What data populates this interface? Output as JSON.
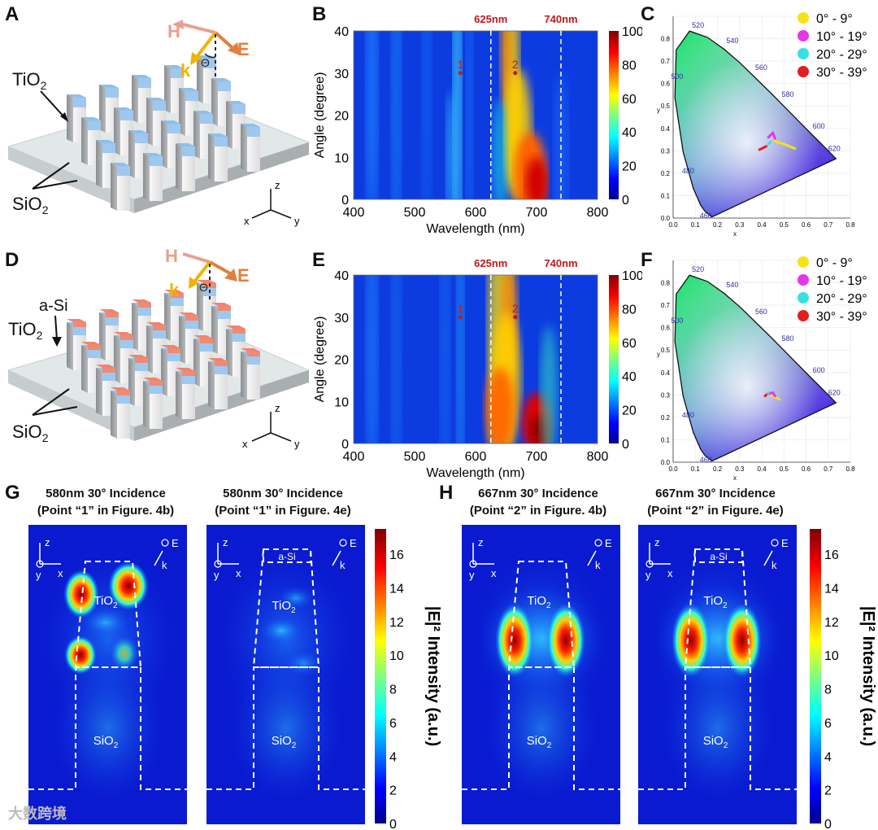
{
  "panels": {
    "A": {
      "letter": "A",
      "top_material": "TiO",
      "top_sub": "2",
      "sub_material": "SiO",
      "sub_sub": "2"
    },
    "D": {
      "letter": "D",
      "cap_material": "a-Si",
      "top_material": "TiO",
      "top_sub": "2",
      "sub_material": "SiO",
      "sub_sub": "2"
    },
    "B": {
      "letter": "B"
    },
    "E": {
      "letter": "E"
    },
    "C": {
      "letter": "C"
    },
    "F": {
      "letter": "F"
    },
    "G": {
      "letter": "G"
    },
    "H": {
      "letter": "H"
    }
  },
  "incidence": {
    "H": "H",
    "E": "E",
    "k": "k",
    "theta": "Θ"
  },
  "axes3d": {
    "x": "x",
    "y": "y",
    "z": "z"
  },
  "heatmap": {
    "xlabel": "Wavelength (nm)",
    "ylabel": "Angle (degree)",
    "x_ticks": [
      "400",
      "500",
      "600",
      "700",
      "800"
    ],
    "y_ticks": [
      "0",
      "10",
      "20",
      "30",
      "40"
    ],
    "xlim": [
      400,
      800
    ],
    "ylim": [
      0,
      40
    ],
    "lines": [
      "625nm",
      "740nm"
    ],
    "cbar_ticks": [
      "0",
      "20",
      "40",
      "60",
      "80",
      "100"
    ],
    "points": [
      "1",
      "2"
    ]
  },
  "cie": {
    "legend": [
      {
        "label": "0° - 9°",
        "color": "#f5e11a"
      },
      {
        "label": "10° - 19°",
        "color": "#e636e6"
      },
      {
        "label": "20° - 29°",
        "color": "#36e0e6"
      },
      {
        "label": "30° - 39°",
        "color": "#e0201e"
      }
    ],
    "x_ticks": [
      "0.0",
      "0.1",
      "0.2",
      "0.3",
      "0.4",
      "0.5",
      "0.6",
      "0.7",
      "0.8"
    ],
    "y_ticks": [
      "0.0",
      "0.1",
      "0.2",
      "0.3",
      "0.4",
      "0.5",
      "0.6",
      "0.7",
      "0.8"
    ],
    "wl_labels": [
      "520",
      "540",
      "560",
      "580",
      "600",
      "620",
      "500",
      "480",
      "460"
    ],
    "xlabel": "x",
    "ylabel": "y"
  },
  "field_titles": {
    "g1": [
      "580nm 30° Incidence",
      "(Point “1” in Figure. 4b)"
    ],
    "g2": [
      "580nm 30° Incidence",
      "(Point “1” in Figure. 4e)"
    ],
    "h1": [
      "667nm 30° Incidence",
      "(Point “2” in Figure. 4b)"
    ],
    "h2": [
      "667nm 30° Incidence",
      "(Point “2” in Figure. 4e)"
    ]
  },
  "field_labels": {
    "tio2": "TiO",
    "sio2": "SiO",
    "sub": "2",
    "asi": "a-Si",
    "E": "E",
    "k": "k",
    "x": "x",
    "y": "y",
    "z": "z"
  },
  "cbar_g": {
    "ticks": [
      "0",
      "2",
      "4",
      "6",
      "8",
      "10",
      "12",
      "14",
      "16"
    ],
    "label": "|E|² Intensity (a.u.)"
  },
  "cbar_h": {
    "ticks": [
      "0",
      "2",
      "4",
      "6",
      "8",
      "10",
      "12",
      "14",
      "16"
    ],
    "label": "|E|² Intensity (a.u.)"
  },
  "watermark": "大数跨境"
}
